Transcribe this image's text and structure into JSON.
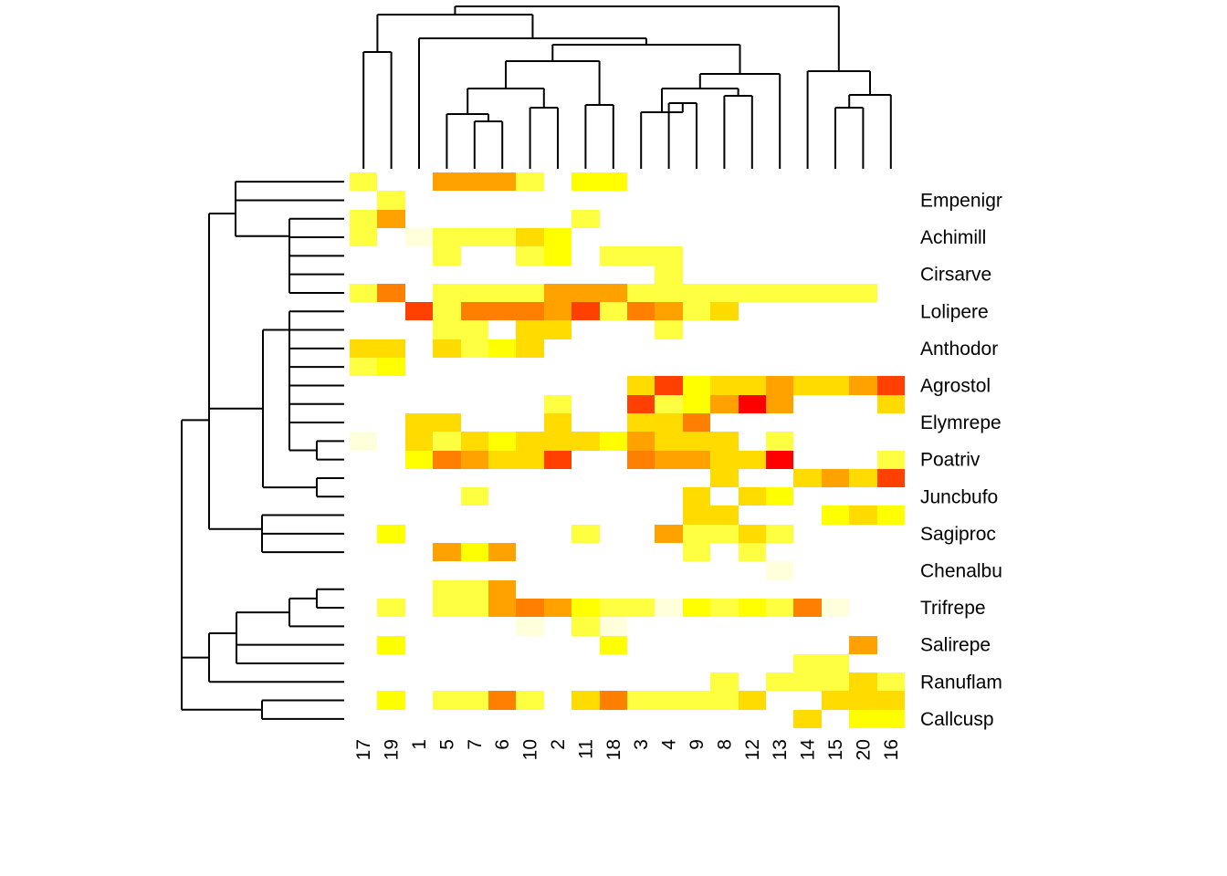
{
  "chart_data": {
    "type": "heatmap",
    "title": "",
    "xlabel": "",
    "ylabel": "",
    "columns": [
      "17",
      "19",
      "1",
      "5",
      "7",
      "6",
      "10",
      "2",
      "11",
      "18",
      "3",
      "4",
      "9",
      "8",
      "12",
      "13",
      "14",
      "15",
      "20",
      "16"
    ],
    "rows_top_to_bottom": [
      "",
      "Empenigr",
      "",
      "Achimill",
      "",
      "Cirsarve",
      "",
      "Lolipere",
      "",
      "Anthodor",
      "",
      "Agrostol",
      "",
      "Elymrepe",
      "",
      "Poatriv",
      "",
      "Juncbufo",
      "",
      "Sagiproc",
      "",
      "Chenalbu",
      "",
      "Trifrepe",
      "",
      "Salirepe",
      "",
      "Ranuflam",
      "",
      "Callcusp"
    ],
    "value_scale": "0 = absent (white), 1 = pale cream, 2 = light yellow, 3 = yellow, 4 = gold, 5 = orange, 6 = dark orange, 7 = red-orange, 8 = red",
    "matrix": [
      [
        2,
        0,
        0,
        5,
        5,
        5,
        2,
        0,
        3,
        3,
        0,
        0,
        0,
        0,
        0,
        0,
        0,
        0,
        0,
        0
      ],
      [
        0,
        2,
        0,
        0,
        0,
        0,
        0,
        0,
        0,
        0,
        0,
        0,
        0,
        0,
        0,
        0,
        0,
        0,
        0,
        0
      ],
      [
        2,
        5,
        0,
        0,
        0,
        0,
        0,
        0,
        2,
        0,
        0,
        0,
        0,
        0,
        0,
        0,
        0,
        0,
        0,
        0
      ],
      [
        2,
        0,
        1,
        2,
        2,
        2,
        4,
        3,
        0,
        0,
        0,
        0,
        0,
        0,
        0,
        0,
        0,
        0,
        0,
        0
      ],
      [
        0,
        0,
        0,
        2,
        0,
        0,
        2,
        3,
        0,
        2,
        2,
        2,
        0,
        0,
        0,
        0,
        0,
        0,
        0,
        0
      ],
      [
        0,
        0,
        0,
        0,
        0,
        0,
        0,
        0,
        0,
        0,
        0,
        2,
        0,
        0,
        0,
        0,
        0,
        0,
        0,
        0
      ],
      [
        2,
        6,
        0,
        2,
        2,
        2,
        2,
        5,
        5,
        5,
        2,
        2,
        2,
        2,
        2,
        2,
        2,
        2,
        2,
        0
      ],
      [
        0,
        0,
        7,
        2,
        6,
        6,
        6,
        5,
        7,
        2,
        6,
        5,
        2,
        4,
        0,
        0,
        0,
        0,
        0,
        0
      ],
      [
        0,
        0,
        0,
        2,
        2,
        0,
        4,
        4,
        0,
        0,
        0,
        2,
        0,
        0,
        0,
        0,
        0,
        0,
        0,
        0
      ],
      [
        4,
        4,
        0,
        4,
        2,
        3,
        4,
        0,
        0,
        0,
        0,
        0,
        0,
        0,
        0,
        0,
        0,
        0,
        0,
        0
      ],
      [
        2,
        3,
        0,
        0,
        0,
        0,
        0,
        0,
        0,
        0,
        0,
        0,
        0,
        0,
        0,
        0,
        0,
        0,
        0,
        0
      ],
      [
        0,
        0,
        0,
        0,
        0,
        0,
        0,
        0,
        0,
        0,
        4,
        7,
        3,
        4,
        4,
        5,
        4,
        4,
        5,
        7
      ],
      [
        0,
        0,
        0,
        0,
        0,
        0,
        0,
        2,
        0,
        0,
        7,
        2,
        3,
        5,
        8,
        5,
        0,
        0,
        0,
        4
      ],
      [
        0,
        0,
        4,
        4,
        0,
        0,
        0,
        4,
        0,
        0,
        4,
        4,
        6,
        0,
        0,
        0,
        0,
        0,
        0,
        0
      ],
      [
        1,
        0,
        4,
        2,
        4,
        3,
        4,
        4,
        4,
        3,
        5,
        4,
        4,
        4,
        0,
        2,
        0,
        0,
        0,
        0
      ],
      [
        0,
        0,
        3,
        6,
        5,
        4,
        4,
        7,
        0,
        0,
        6,
        5,
        5,
        4,
        4,
        8,
        0,
        0,
        0,
        2
      ],
      [
        0,
        0,
        0,
        0,
        0,
        0,
        0,
        0,
        0,
        0,
        0,
        0,
        0,
        4,
        0,
        0,
        4,
        5,
        4,
        7
      ],
      [
        0,
        0,
        0,
        0,
        2,
        0,
        0,
        0,
        0,
        0,
        0,
        0,
        4,
        0,
        4,
        3,
        0,
        0,
        0,
        0
      ],
      [
        0,
        0,
        0,
        0,
        0,
        0,
        0,
        0,
        0,
        0,
        0,
        0,
        4,
        4,
        0,
        0,
        0,
        3,
        4,
        3
      ],
      [
        0,
        3,
        0,
        0,
        0,
        0,
        0,
        0,
        2,
        0,
        0,
        5,
        2,
        2,
        4,
        2,
        0,
        0,
        0,
        0
      ],
      [
        0,
        0,
        0,
        5,
        3,
        5,
        0,
        0,
        0,
        0,
        0,
        0,
        2,
        0,
        2,
        0,
        0,
        0,
        0,
        0
      ],
      [
        0,
        0,
        0,
        0,
        0,
        0,
        0,
        0,
        0,
        0,
        0,
        0,
        0,
        0,
        0,
        1,
        0,
        0,
        0,
        0
      ],
      [
        0,
        0,
        0,
        2,
        2,
        5,
        0,
        0,
        0,
        0,
        0,
        0,
        0,
        0,
        0,
        0,
        0,
        0,
        0,
        0
      ],
      [
        0,
        2,
        0,
        2,
        2,
        5,
        6,
        5,
        3,
        2,
        2,
        1,
        3,
        2,
        3,
        2,
        6,
        1,
        0,
        0
      ],
      [
        0,
        0,
        0,
        0,
        0,
        0,
        1,
        0,
        2,
        1,
        0,
        0,
        0,
        0,
        0,
        0,
        0,
        0,
        0,
        0
      ],
      [
        0,
        3,
        0,
        0,
        0,
        0,
        0,
        0,
        0,
        3,
        0,
        0,
        0,
        0,
        0,
        0,
        0,
        0,
        5,
        0
      ],
      [
        0,
        0,
        0,
        0,
        0,
        0,
        0,
        0,
        0,
        0,
        0,
        0,
        0,
        0,
        0,
        0,
        2,
        2,
        0,
        0
      ],
      [
        0,
        0,
        0,
        0,
        0,
        0,
        0,
        0,
        0,
        0,
        0,
        0,
        0,
        2,
        0,
        2,
        2,
        2,
        4,
        2
      ],
      [
        0,
        3,
        0,
        2,
        2,
        6,
        2,
        0,
        4,
        6,
        2,
        2,
        2,
        2,
        4,
        0,
        0,
        4,
        4,
        4
      ],
      [
        0,
        0,
        0,
        0,
        0,
        0,
        0,
        0,
        0,
        0,
        0,
        0,
        0,
        0,
        0,
        0,
        4,
        0,
        3,
        3
      ]
    ],
    "legend": "none",
    "grid": false
  },
  "colors": {
    "palette": [
      "#ffffff",
      "#ffffdb",
      "#ffff42",
      "#ffff00",
      "#ffdb00",
      "#ffa200",
      "#ff8000",
      "#ff4000",
      "#ff0000"
    ],
    "dendrogram": "#000000",
    "background": "#ffffff"
  }
}
